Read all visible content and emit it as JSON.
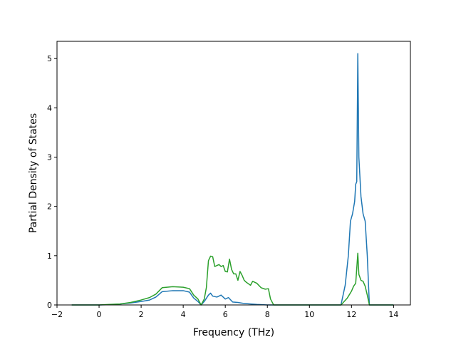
{
  "chart_data": {
    "type": "line",
    "title": "",
    "xlabel": "Frequency (THz)",
    "ylabel": "Partial Density of States",
    "xlim": [
      -2.0,
      14.8
    ],
    "ylim": [
      0,
      5.35
    ],
    "xticks": [
      -2,
      0,
      2,
      4,
      6,
      8,
      10,
      12,
      14
    ],
    "yticks": [
      0,
      1,
      2,
      3,
      4,
      5
    ],
    "grid": false,
    "legend": "none",
    "series": [
      {
        "color": "#1f77b4",
        "points": [
          [
            -1.3,
            0.0
          ],
          [
            0.0,
            0.0
          ],
          [
            0.5,
            0.005
          ],
          [
            1.0,
            0.02
          ],
          [
            1.5,
            0.04
          ],
          [
            2.0,
            0.07
          ],
          [
            2.4,
            0.1
          ],
          [
            2.7,
            0.16
          ],
          [
            3.0,
            0.27
          ],
          [
            3.5,
            0.29
          ],
          [
            4.0,
            0.29
          ],
          [
            4.3,
            0.26
          ],
          [
            4.5,
            0.14
          ],
          [
            4.7,
            0.07
          ],
          [
            4.85,
            0.0
          ],
          [
            5.0,
            0.07
          ],
          [
            5.2,
            0.2
          ],
          [
            5.3,
            0.24
          ],
          [
            5.4,
            0.18
          ],
          [
            5.6,
            0.16
          ],
          [
            5.8,
            0.2
          ],
          [
            6.0,
            0.12
          ],
          [
            6.15,
            0.15
          ],
          [
            6.35,
            0.06
          ],
          [
            6.6,
            0.05
          ],
          [
            6.9,
            0.03
          ],
          [
            7.2,
            0.02
          ],
          [
            7.5,
            0.01
          ],
          [
            8.0,
            0.0
          ],
          [
            11.5,
            0.0
          ],
          [
            11.7,
            0.4
          ],
          [
            11.85,
            1.0
          ],
          [
            11.95,
            1.7
          ],
          [
            12.05,
            1.85
          ],
          [
            12.15,
            2.1
          ],
          [
            12.2,
            2.45
          ],
          [
            12.25,
            2.5
          ],
          [
            12.3,
            5.1
          ],
          [
            12.35,
            3.0
          ],
          [
            12.45,
            2.2
          ],
          [
            12.55,
            1.85
          ],
          [
            12.65,
            1.7
          ],
          [
            12.75,
            1.0
          ],
          [
            12.85,
            0.0
          ],
          [
            14.0,
            0.0
          ]
        ]
      },
      {
        "color": "#2ca02c",
        "points": [
          [
            -1.3,
            0.0
          ],
          [
            0.0,
            0.0
          ],
          [
            0.5,
            0.01
          ],
          [
            1.0,
            0.02
          ],
          [
            1.5,
            0.05
          ],
          [
            2.0,
            0.1
          ],
          [
            2.4,
            0.15
          ],
          [
            2.7,
            0.22
          ],
          [
            3.0,
            0.35
          ],
          [
            3.5,
            0.37
          ],
          [
            4.0,
            0.36
          ],
          [
            4.3,
            0.33
          ],
          [
            4.5,
            0.2
          ],
          [
            4.7,
            0.12
          ],
          [
            4.85,
            0.0
          ],
          [
            5.0,
            0.12
          ],
          [
            5.1,
            0.35
          ],
          [
            5.2,
            0.9
          ],
          [
            5.3,
            0.99
          ],
          [
            5.4,
            0.98
          ],
          [
            5.5,
            0.78
          ],
          [
            5.6,
            0.8
          ],
          [
            5.7,
            0.82
          ],
          [
            5.8,
            0.78
          ],
          [
            5.9,
            0.8
          ],
          [
            6.0,
            0.68
          ],
          [
            6.1,
            0.67
          ],
          [
            6.2,
            0.93
          ],
          [
            6.3,
            0.72
          ],
          [
            6.4,
            0.63
          ],
          [
            6.5,
            0.63
          ],
          [
            6.6,
            0.5
          ],
          [
            6.7,
            0.68
          ],
          [
            6.8,
            0.6
          ],
          [
            6.9,
            0.5
          ],
          [
            7.0,
            0.46
          ],
          [
            7.2,
            0.4
          ],
          [
            7.3,
            0.48
          ],
          [
            7.5,
            0.44
          ],
          [
            7.7,
            0.35
          ],
          [
            7.9,
            0.32
          ],
          [
            8.05,
            0.33
          ],
          [
            8.15,
            0.12
          ],
          [
            8.3,
            0.0
          ],
          [
            11.5,
            0.0
          ],
          [
            11.8,
            0.14
          ],
          [
            12.0,
            0.28
          ],
          [
            12.1,
            0.38
          ],
          [
            12.2,
            0.44
          ],
          [
            12.3,
            1.05
          ],
          [
            12.35,
            0.62
          ],
          [
            12.45,
            0.5
          ],
          [
            12.55,
            0.48
          ],
          [
            12.65,
            0.38
          ],
          [
            12.75,
            0.2
          ],
          [
            12.85,
            0.0
          ],
          [
            14.0,
            0.0
          ]
        ]
      }
    ]
  }
}
